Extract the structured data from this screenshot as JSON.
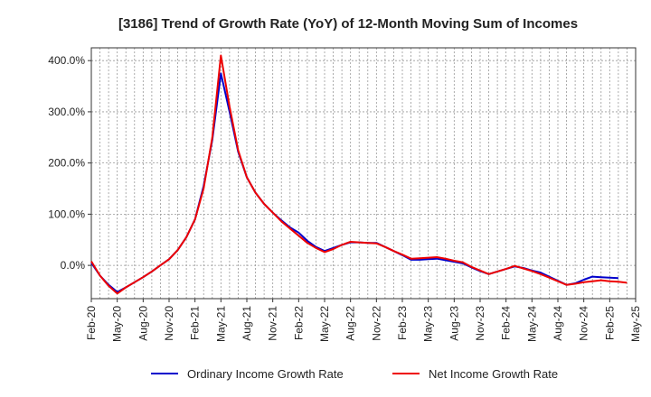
{
  "chart_data": {
    "type": "line",
    "title": "[3186]  Trend of Growth Rate (YoY) of 12-Month Moving Sum of Incomes",
    "xlabel": "",
    "ylabel": "",
    "ylim": [
      -65,
      425
    ],
    "y_ticks": [
      0,
      100,
      200,
      300,
      400
    ],
    "y_tick_labels": [
      "0.0%",
      "100.0%",
      "200.0%",
      "300.0%",
      "400.0%"
    ],
    "x_tick_labels": [
      "Feb-20",
      "May-20",
      "Aug-20",
      "Nov-20",
      "Feb-21",
      "May-21",
      "Aug-21",
      "Nov-21",
      "Feb-22",
      "May-22",
      "Aug-22",
      "Nov-22",
      "Feb-23",
      "May-23",
      "Aug-23",
      "Nov-23",
      "Feb-24",
      "May-24",
      "Aug-24",
      "Nov-24",
      "Feb-25",
      "May-25"
    ],
    "x_months": 63,
    "grid": true,
    "legend_position": "bottom",
    "series": [
      {
        "name": "Ordinary Income Growth Rate",
        "color": "#0000cc",
        "values": [
          5,
          -20,
          -38,
          -52,
          -43,
          -33,
          -23,
          -12,
          0,
          12,
          30,
          55,
          90,
          155,
          245,
          375,
          300,
          222,
          172,
          142,
          120,
          103,
          88,
          74,
          64,
          48,
          36,
          28,
          34,
          40,
          45,
          45,
          44,
          44,
          36,
          28,
          20,
          11,
          11,
          12,
          13,
          10,
          7,
          4,
          -4,
          -11,
          -17,
          -12,
          -7,
          -2,
          -5,
          -10,
          -14,
          -22,
          -30,
          -38,
          -35,
          -28,
          -22,
          -23,
          -24,
          -25
        ],
        "start_index": 0
      },
      {
        "name": "Net Income Growth Rate",
        "color": "#ee0000",
        "values": [
          8,
          -20,
          -40,
          -55,
          -43,
          -33,
          -23,
          -12,
          0,
          12,
          30,
          55,
          90,
          150,
          250,
          410,
          310,
          225,
          172,
          142,
          120,
          103,
          86,
          72,
          58,
          44,
          34,
          26,
          32,
          40,
          46,
          45,
          44,
          43,
          36,
          28,
          21,
          13,
          14,
          15,
          16,
          13,
          9,
          6,
          -3,
          -10,
          -17,
          -12,
          -7,
          -1,
          -6,
          -11,
          -17,
          -24,
          -31,
          -38,
          -36,
          -33,
          -31,
          -29,
          -31,
          -32,
          -34
        ],
        "start_index": 0
      }
    ]
  }
}
